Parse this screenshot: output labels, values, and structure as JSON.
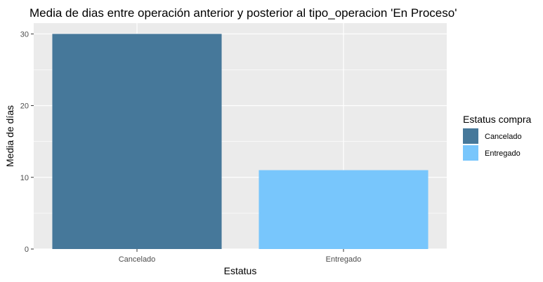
{
  "chart_data": {
    "type": "bar",
    "title": "Media de dias entre operación anterior y posterior al tipo_operacion 'En Proceso'",
    "xlabel": "Estatus",
    "ylabel": "Media de días",
    "categories": [
      "Cancelado",
      "Entregado"
    ],
    "values": [
      30,
      11
    ],
    "ylim": [
      0,
      31.5
    ],
    "yticks": [
      0,
      10,
      20,
      30
    ],
    "grid": true,
    "legend": {
      "title": "Estatus compra",
      "position": "right",
      "items": [
        {
          "label": "Cancelado",
          "color": "#46789a"
        },
        {
          "label": "Entregado",
          "color": "#78c6fc"
        }
      ]
    },
    "colors": [
      "#46789a",
      "#78c6fc"
    ],
    "panel_background": "#ebebeb",
    "gridline_color": "#ffffff"
  }
}
